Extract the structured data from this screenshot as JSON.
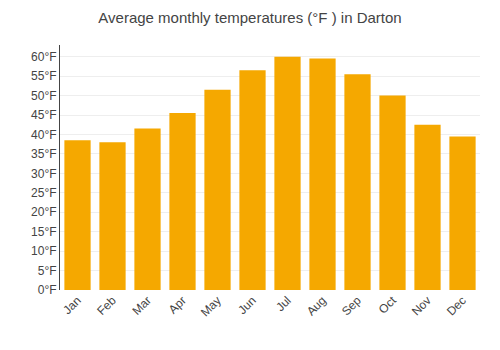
{
  "chart_data": {
    "type": "bar",
    "title": "Average monthly temperatures (°F ) in Darton",
    "categories": [
      "Jan",
      "Feb",
      "Mar",
      "Apr",
      "May",
      "Jun",
      "Jul",
      "Aug",
      "Sep",
      "Oct",
      "Nov",
      "Dec"
    ],
    "values": [
      38.5,
      38.0,
      41.5,
      45.5,
      51.5,
      56.5,
      60.0,
      59.5,
      55.5,
      50.0,
      42.5,
      39.5
    ],
    "color": "#F5A800",
    "ylim": [
      0,
      63
    ],
    "yticks": [
      {
        "value": 0,
        "label": "0°F"
      },
      {
        "value": 5,
        "label": "5°F"
      },
      {
        "value": 10,
        "label": "10°F"
      },
      {
        "value": 15,
        "label": "15°F"
      },
      {
        "value": 20,
        "label": "20°F"
      },
      {
        "value": 25,
        "label": "25°F"
      },
      {
        "value": 30,
        "label": "30°F"
      },
      {
        "value": 35,
        "label": "35°F"
      },
      {
        "value": 40,
        "label": "40°F"
      },
      {
        "value": 45,
        "label": "45°F"
      },
      {
        "value": 50,
        "label": "50°F"
      },
      {
        "value": 55,
        "label": "55°F"
      },
      {
        "value": 60,
        "label": "60°F"
      }
    ],
    "grid": true
  }
}
